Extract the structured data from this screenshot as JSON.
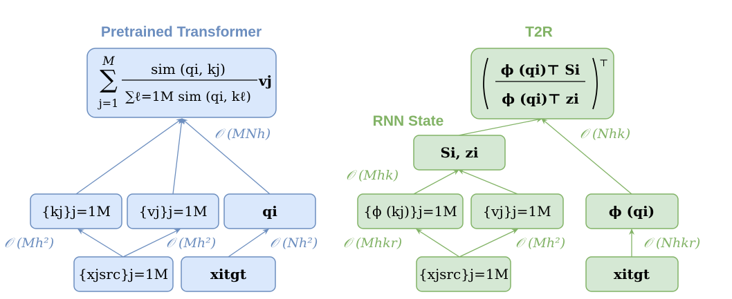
{
  "colors": {
    "blue_stroke": "#6c8ebf",
    "blue_fill": "#dae8fc",
    "green_stroke": "#82b366",
    "green_fill": "#d5e8d4"
  },
  "left": {
    "title": "Pretrained Transformer",
    "attention": {
      "sum_upper": "M",
      "sum_lower": "j=1",
      "sum_sign": "∑",
      "numerator": "sim (qi, kj)",
      "denominator": "∑ℓ=1M sim (qi, kℓ)",
      "value": "vj"
    },
    "keys": "{kj}j=1M",
    "values": "{vj}j=1M",
    "query": "qi",
    "src": "{xjsrc}j=1M",
    "tgt": "xitgt",
    "complexity_top": "𝒪 (MNh)",
    "complexity_keys": "𝒪 (Mh²)",
    "complexity_values": "𝒪 (Mh²)",
    "complexity_query": "𝒪 (Nh²)"
  },
  "right": {
    "title": "T2R",
    "rnn_label": "RNN State",
    "output": {
      "numerator": "ϕ (qi)⊤ Si",
      "denominator": "ϕ (qi)⊤ zi",
      "transpose": "⊤"
    },
    "state": "Si, zi",
    "phi_keys": "{ϕ (kj)}j=1M",
    "values": "{vj}j=1M",
    "phi_query": "ϕ (qi)",
    "src": "{xjsrc}j=1M",
    "tgt": "xitgt",
    "complexity_state": "𝒪 (Mhk)",
    "complexity_top": "𝒪 (Nhk)",
    "complexity_phi_keys": "𝒪 (Mhkr)",
    "complexity_values": "𝒪 (Mh²)",
    "complexity_phi_query": "𝒪 (Nhkr)"
  }
}
